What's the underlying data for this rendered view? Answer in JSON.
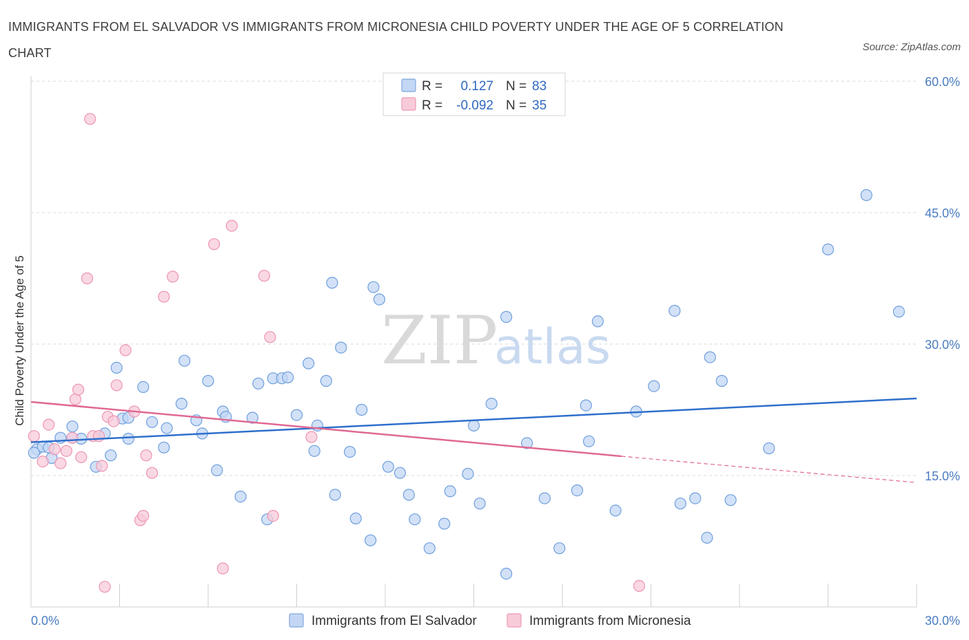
{
  "title": "IMMIGRANTS FROM EL SALVADOR VS IMMIGRANTS FROM MICRONESIA CHILD POVERTY UNDER THE AGE OF 5 CORRELATION CHART",
  "source": "Source: ZipAtlas.com",
  "watermark": {
    "zip": "ZIP",
    "atlas": "atlas"
  },
  "legend": {
    "r_label": "R =",
    "n_label": "N =",
    "items": [
      {
        "r": "0.127",
        "n": "83",
        "color": "#a9c6ef"
      },
      {
        "r": "-0.092",
        "n": "35",
        "color": "#f5b8cb"
      }
    ]
  },
  "chart_data": {
    "type": "scatter",
    "title": "IMMIGRANTS FROM EL SALVADOR VS IMMIGRANTS FROM MICRONESIA CHILD POVERTY UNDER THE AGE OF 5 CORRELATION CHART",
    "xlabel": "",
    "ylabel": "Child Poverty Under the Age of 5",
    "xlim": [
      0,
      30
    ],
    "ylim": [
      0,
      60
    ],
    "x_tick_labels": [
      "0.0%",
      "30.0%"
    ],
    "y_ticks": [
      15,
      30,
      45,
      60
    ],
    "y_tick_labels": [
      "15.0%",
      "30.0%",
      "45.0%",
      "60.0%"
    ],
    "grid": true,
    "legend_position": "top-center",
    "series": [
      {
        "name": "Immigrants from El Salvador",
        "color": "#6e9fdd",
        "fill": "#c3d7f4",
        "trend": {
          "x": [
            0,
            30
          ],
          "y": [
            18.8,
            23.8
          ],
          "color": "#2e6fcc"
        },
        "points": [
          [
            0.2,
            18.0
          ],
          [
            0.4,
            18.3
          ],
          [
            0.6,
            18.2
          ],
          [
            0.7,
            17.0
          ],
          [
            1.0,
            19.3
          ],
          [
            1.4,
            19.3
          ],
          [
            1.7,
            19.2
          ],
          [
            2.5,
            19.8
          ],
          [
            3.3,
            19.2
          ],
          [
            1.4,
            20.6
          ],
          [
            2.2,
            16.0
          ],
          [
            2.7,
            17.3
          ],
          [
            2.9,
            27.3
          ],
          [
            3.1,
            21.5
          ],
          [
            3.3,
            21.6
          ],
          [
            3.8,
            25.1
          ],
          [
            4.1,
            21.1
          ],
          [
            4.5,
            18.2
          ],
          [
            4.6,
            20.4
          ],
          [
            5.2,
            28.1
          ],
          [
            5.1,
            23.2
          ],
          [
            5.6,
            21.3
          ],
          [
            5.8,
            19.8
          ],
          [
            6.0,
            25.8
          ],
          [
            6.3,
            15.6
          ],
          [
            6.5,
            22.3
          ],
          [
            6.6,
            21.7
          ],
          [
            7.1,
            12.6
          ],
          [
            7.5,
            21.6
          ],
          [
            7.7,
            25.5
          ],
          [
            8.0,
            10.0
          ],
          [
            8.2,
            26.1
          ],
          [
            8.5,
            26.1
          ],
          [
            8.7,
            26.2
          ],
          [
            9.0,
            21.9
          ],
          [
            9.4,
            27.8
          ],
          [
            9.6,
            17.8
          ],
          [
            9.7,
            20.7
          ],
          [
            10.0,
            25.8
          ],
          [
            10.2,
            37.0
          ],
          [
            10.3,
            12.8
          ],
          [
            10.5,
            29.6
          ],
          [
            10.8,
            17.7
          ],
          [
            11.0,
            10.1
          ],
          [
            11.2,
            22.5
          ],
          [
            11.5,
            7.6
          ],
          [
            11.6,
            36.5
          ],
          [
            11.8,
            35.1
          ],
          [
            12.1,
            16.0
          ],
          [
            12.5,
            15.3
          ],
          [
            12.8,
            12.8
          ],
          [
            13.0,
            10.0
          ],
          [
            13.5,
            6.7
          ],
          [
            14.0,
            9.5
          ],
          [
            14.2,
            13.2
          ],
          [
            14.8,
            15.2
          ],
          [
            15.0,
            20.7
          ],
          [
            15.2,
            11.8
          ],
          [
            15.6,
            23.2
          ],
          [
            16.1,
            33.1
          ],
          [
            16.1,
            3.8
          ],
          [
            16.8,
            18.7
          ],
          [
            17.4,
            12.4
          ],
          [
            17.9,
            6.7
          ],
          [
            18.5,
            13.3
          ],
          [
            18.8,
            23.0
          ],
          [
            18.9,
            18.9
          ],
          [
            19.2,
            32.6
          ],
          [
            19.8,
            11.0
          ],
          [
            20.5,
            22.3
          ],
          [
            21.1,
            25.2
          ],
          [
            21.8,
            33.8
          ],
          [
            22.0,
            11.8
          ],
          [
            22.5,
            12.4
          ],
          [
            22.9,
            7.9
          ],
          [
            23.0,
            28.5
          ],
          [
            23.4,
            25.8
          ],
          [
            23.7,
            12.2
          ],
          [
            25.0,
            18.1
          ],
          [
            27.0,
            40.8
          ],
          [
            28.3,
            47.0
          ],
          [
            29.4,
            33.7
          ],
          [
            0.1,
            17.6
          ]
        ]
      },
      {
        "name": "Immigrants from Micronesia",
        "color": "#ec94b2",
        "fill": "#f8cbd9",
        "trend": {
          "x": [
            0,
            20
          ],
          "y": [
            23.4,
            17.2
          ],
          "dash_x": [
            20,
            30
          ],
          "dash_y": [
            17.2,
            14.2
          ],
          "color": "#e06893"
        },
        "points": [
          [
            0.1,
            19.5
          ],
          [
            0.4,
            16.6
          ],
          [
            0.6,
            20.8
          ],
          [
            0.8,
            18.0
          ],
          [
            1.0,
            16.4
          ],
          [
            1.2,
            17.8
          ],
          [
            1.4,
            19.3
          ],
          [
            1.5,
            23.7
          ],
          [
            1.6,
            24.8
          ],
          [
            1.7,
            17.1
          ],
          [
            1.9,
            37.5
          ],
          [
            2.0,
            55.7
          ],
          [
            2.1,
            19.5
          ],
          [
            2.3,
            19.5
          ],
          [
            2.4,
            16.1
          ],
          [
            2.5,
            2.3
          ],
          [
            2.6,
            21.7
          ],
          [
            2.8,
            21.2
          ],
          [
            2.9,
            25.3
          ],
          [
            3.2,
            29.3
          ],
          [
            3.5,
            22.3
          ],
          [
            3.7,
            9.9
          ],
          [
            3.8,
            10.4
          ],
          [
            3.9,
            17.3
          ],
          [
            4.1,
            15.3
          ],
          [
            4.5,
            35.4
          ],
          [
            4.8,
            37.7
          ],
          [
            6.2,
            41.4
          ],
          [
            6.5,
            4.4
          ],
          [
            6.8,
            43.5
          ],
          [
            7.9,
            37.8
          ],
          [
            8.1,
            30.8
          ],
          [
            8.2,
            10.4
          ],
          [
            9.5,
            19.4
          ],
          [
            20.6,
            2.4
          ]
        ]
      }
    ]
  },
  "bottom_legend": [
    {
      "label": "Immigrants from El Salvador"
    },
    {
      "label": "Immigrants from Micronesia"
    }
  ]
}
